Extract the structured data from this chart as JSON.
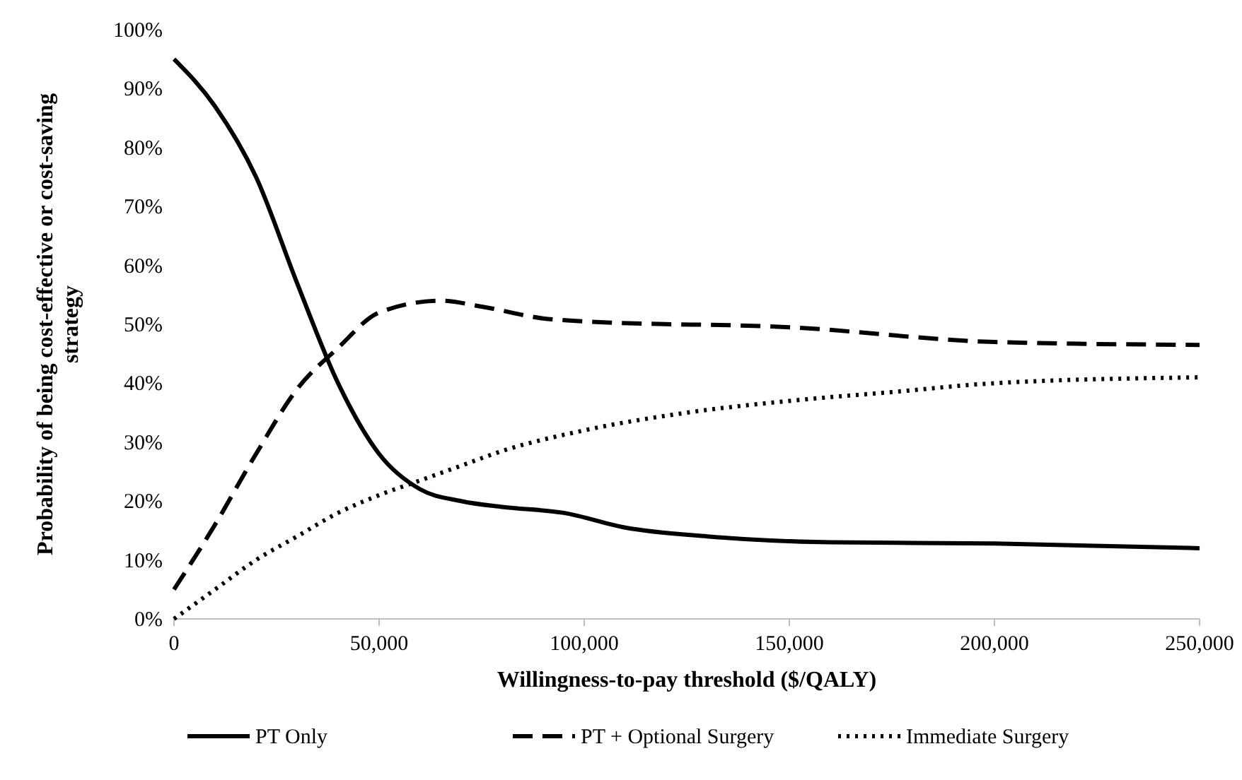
{
  "chart_data": {
    "type": "line",
    "xlabel": "Willingness-to-pay threshold ($/QALY)",
    "ylabel": "Probability of being cost-effective or cost-saving strategy",
    "xlim": [
      0,
      250000
    ],
    "xticks": [
      {
        "value": 0,
        "label": "0"
      },
      {
        "value": 50000,
        "label": "50,000"
      },
      {
        "value": 100000,
        "label": "100,000"
      },
      {
        "value": 150000,
        "label": "150,000"
      },
      {
        "value": 200000,
        "label": "200,000"
      },
      {
        "value": 250000,
        "label": "250,000"
      }
    ],
    "ylim": [
      0,
      100
    ],
    "yticks": [
      {
        "value": 0,
        "label": "0%"
      },
      {
        "value": 10,
        "label": "10%"
      },
      {
        "value": 20,
        "label": "20%"
      },
      {
        "value": 30,
        "label": "30%"
      },
      {
        "value": 40,
        "label": "40%"
      },
      {
        "value": 50,
        "label": "50%"
      },
      {
        "value": 60,
        "label": "60%"
      },
      {
        "value": 70,
        "label": "70%"
      },
      {
        "value": 80,
        "label": "80%"
      },
      {
        "value": 90,
        "label": "90%"
      },
      {
        "value": 100,
        "label": "100%"
      }
    ],
    "grid": false,
    "legend": "bottom",
    "marker": "none",
    "series": [
      {
        "name": "PT Only",
        "color": "#000000",
        "line_style": "solid",
        "x": [
          0,
          10000,
          20000,
          30000,
          40000,
          50000,
          60000,
          70000,
          80000,
          95000,
          110000,
          130000,
          160000,
          200000,
          250000
        ],
        "values": [
          95,
          87,
          75,
          57,
          40,
          28,
          22,
          20,
          19,
          18,
          15.5,
          14,
          13,
          12.8,
          12
        ]
      },
      {
        "name": "PT + Optional Surgery",
        "color": "#000000",
        "line_style": "dashed",
        "x": [
          0,
          10000,
          20000,
          30000,
          40000,
          50000,
          65000,
          75000,
          90000,
          100000,
          150000,
          200000,
          250000
        ],
        "values": [
          5,
          16,
          28,
          39,
          46,
          52,
          54,
          53,
          51,
          50.5,
          49.5,
          47,
          46.5
        ]
      },
      {
        "name": "Immediate Surgery",
        "color": "#000000",
        "line_style": "dotted",
        "x": [
          0,
          10000,
          20000,
          30000,
          40000,
          50000,
          60000,
          70000,
          80000,
          100000,
          125000,
          150000,
          175000,
          200000,
          250000
        ],
        "values": [
          0,
          5,
          10,
          14,
          18,
          21,
          23.5,
          26,
          28.5,
          32,
          35,
          37,
          38.5,
          40,
          41
        ]
      }
    ]
  }
}
